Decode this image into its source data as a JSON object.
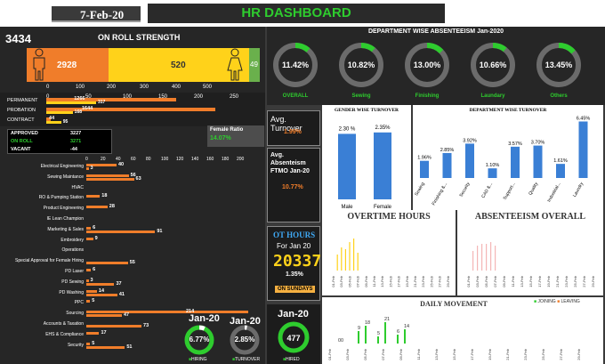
{
  "header": {
    "date": "7-Feb-20",
    "title": "HR DASHBOARD"
  },
  "on_roll": {
    "total": "3434",
    "title": "ON ROLL STRENGTH",
    "male": 2928,
    "female": 520,
    "other": 49,
    "axis": [
      "0",
      "100",
      "200",
      "300",
      "400",
      "500"
    ]
  },
  "dept_absent": {
    "title": "DEPARTMENT WISE ABSENTEEISM Jan-2020",
    "items": [
      {
        "label": "OVERALL",
        "value": "11.42%",
        "pct": 0.1142
      },
      {
        "label": "Sewing",
        "value": "10.82%",
        "pct": 0.1082
      },
      {
        "label": "Finishing",
        "value": "13.00%",
        "pct": 0.13
      },
      {
        "label": "Laundary",
        "value": "10.66%",
        "pct": 0.1066
      },
      {
        "label": "Others",
        "value": "13.45%",
        "pct": 0.1345
      }
    ]
  },
  "categories": {
    "rows": [
      {
        "label": "PERMANENT",
        "a": 1266,
        "b": 317
      },
      {
        "label": "PROBATION",
        "a": 1644,
        "b": 168
      },
      {
        "label": "CONTRACT",
        "a": 44,
        "b": 95
      }
    ],
    "axis": [
      "0",
      "50",
      "100",
      "150",
      "200",
      "250"
    ]
  },
  "approvals": {
    "rows": [
      {
        "label": "APPROVED",
        "value": "3227"
      },
      {
        "label": "ON ROLL",
        "value": "3271"
      },
      {
        "label": "VACANT",
        "value": "-44"
      }
    ]
  },
  "female_ratio": {
    "label": "Female Ratio",
    "value": "14.07%"
  },
  "avg_turnover": {
    "label": "Avg. Turnover",
    "value": "1.99%"
  },
  "avg_absent": {
    "label": "Avg. Absenteism FTMO Jan-20",
    "value": "10.77%"
  },
  "gender_turnover": {
    "title": "GENDER WISE TURNOVER",
    "categories": [
      "Male",
      "Female"
    ],
    "values": [
      2.3,
      2.35
    ],
    "labels": [
      "2.30 %",
      "2.35%"
    ]
  },
  "dept_turnover": {
    "title": "DEPARTMENT WISE TURNOVER",
    "categories": [
      "Sewing",
      "Finishing &...",
      "Security",
      "CAD &...",
      "Support...",
      "Quality",
      "Industrial...",
      "Laundry"
    ],
    "values": [
      1.96,
      2.85,
      3.92,
      1.1,
      3.57,
      3.7,
      1.61,
      6.45
    ],
    "labels": [
      "1.96%",
      "2.85%",
      "3.92%",
      "1.10%",
      "3.57%",
      "3.70%",
      "1.61%",
      "6.45%"
    ]
  },
  "dept_list": {
    "axis": [
      "0",
      "20",
      "40",
      "60",
      "80",
      "100",
      "120",
      "140",
      "160",
      "180",
      "200"
    ],
    "rows": [
      {
        "label": "Electrical Engineering",
        "a": 40,
        "b": 3
      },
      {
        "label": "Sewing Maintance",
        "a": 56,
        "b": 63
      },
      {
        "label": "HVAC",
        "a": 0,
        "b": 0
      },
      {
        "label": "RO & Pumping Station",
        "a": 18,
        "b": 0
      },
      {
        "label": "Product Engineering",
        "a": 28,
        "b": 0
      },
      {
        "label": "IE Lean Champion",
        "a": 0,
        "b": 0
      },
      {
        "label": "Marketing & Sales",
        "a": 6,
        "b": 91
      },
      {
        "label": "Embroidery",
        "a": 9,
        "b": 0
      },
      {
        "label": "Operations",
        "a": 0,
        "b": 0
      },
      {
        "label": "Special Approval for Female Hiring",
        "a": 0,
        "b": 55
      },
      {
        "label": "PD Laser",
        "a": 6,
        "b": 0
      },
      {
        "label": "PD Sewing",
        "a": 3,
        "b": 37
      },
      {
        "label": "PD Washing",
        "a": 14,
        "b": 41
      },
      {
        "label": "PPC",
        "a": 5,
        "b": 0
      },
      {
        "label": "Sourcing",
        "a": 214,
        "b": 47
      },
      {
        "label": "Accounts & Taxation",
        "a": 0,
        "b": 73
      },
      {
        "label": "EHS & Compliance",
        "a": 17,
        "b": 0
      },
      {
        "label": "Security",
        "a": 5,
        "b": 51
      }
    ]
  },
  "hiring": {
    "month": "Jan-20",
    "value": "6.77%",
    "pct": 0.0677,
    "legend": "HIRING"
  },
  "turnover": {
    "month": "Jan-20",
    "value": "2.85%",
    "pct": 0.0285,
    "legend": "TURNOVER"
  },
  "hired": {
    "month": "Jan-20",
    "value": "477",
    "legend": "HIRED"
  },
  "ot": {
    "title": "OT HOURS",
    "month": "For Jan 20",
    "value": "20337",
    "pct": "1.35%",
    "sundays": "ON SUNDAYS"
  },
  "overtime": {
    "title": "OVERTIME HOURS",
    "dates": [
      "01-Feb",
      "03-Feb",
      "05-Feb",
      "07-Feb",
      "09-Feb",
      "11-Feb",
      "13-Feb",
      "15-Feb",
      "17-Feb",
      "19-Feb",
      "21-Feb",
      "23-Feb",
      "25-Feb",
      "27-Feb",
      "29-Feb"
    ]
  },
  "absent_overall": {
    "title": "ABSENTEEISM OVERALL"
  },
  "daily_movement": {
    "title": "DAILY MOVEMENT",
    "legend_join": "JOINING",
    "legend_leave": "LEAVING",
    "labels": [
      "00",
      "9",
      "18",
      "5",
      "21",
      "6",
      "14"
    ]
  },
  "colors": {
    "green": "#2ecc2e",
    "orange": "#f07d2a",
    "yellow": "#ffd21a",
    "blue": "#3a7fd5",
    "pink": "#f4b6b6"
  }
}
